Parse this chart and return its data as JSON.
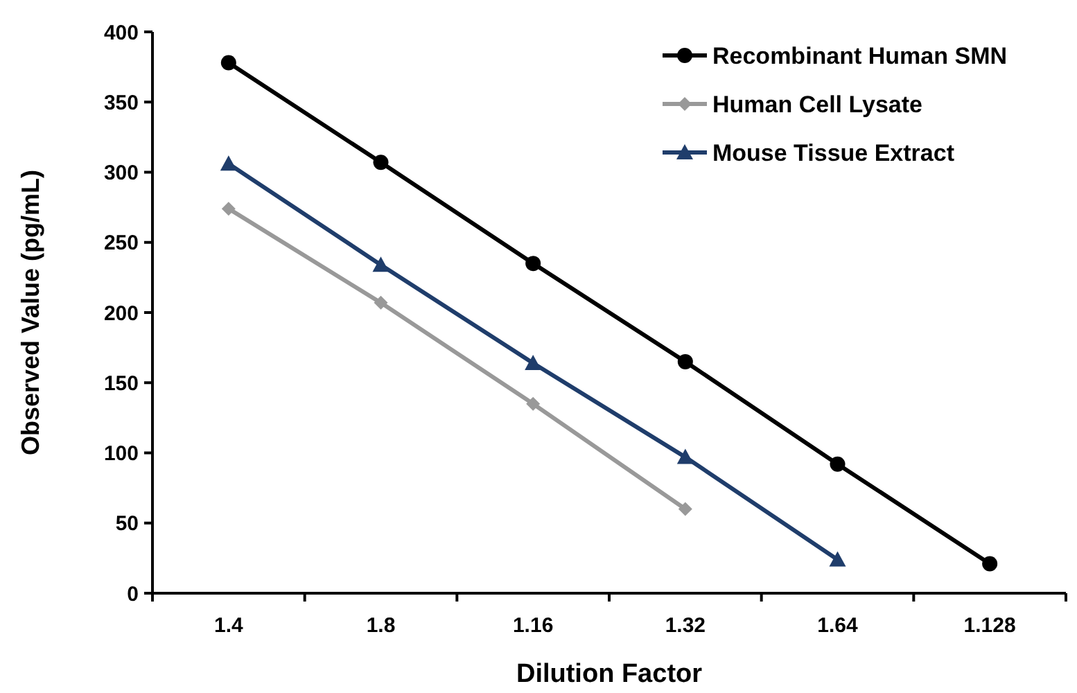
{
  "chart_data": {
    "type": "line",
    "xlabel": "Dilution Factor",
    "ylabel": "Observed Value (pg/mL)",
    "categories": [
      "1.4",
      "1.8",
      "1.16",
      "1.32",
      "1.64",
      "1.128"
    ],
    "ylim": [
      0,
      400
    ],
    "yticks": [
      0,
      50,
      100,
      150,
      200,
      250,
      300,
      350,
      400
    ],
    "grid": false,
    "legend": "top right",
    "series": [
      {
        "name": "Recombinant Human SMN",
        "color": "#000000",
        "marker": "circle",
        "values": [
          378,
          307,
          235,
          165,
          92,
          21
        ]
      },
      {
        "name": "Human Cell Lysate",
        "color": "#999999",
        "marker": "diamond",
        "values": [
          274,
          207,
          135,
          60,
          null,
          null
        ]
      },
      {
        "name": "Mouse Tissue Extract",
        "color": "#1f3d6b",
        "marker": "triangle",
        "values": [
          306,
          234,
          164,
          97,
          24,
          null
        ]
      }
    ]
  }
}
